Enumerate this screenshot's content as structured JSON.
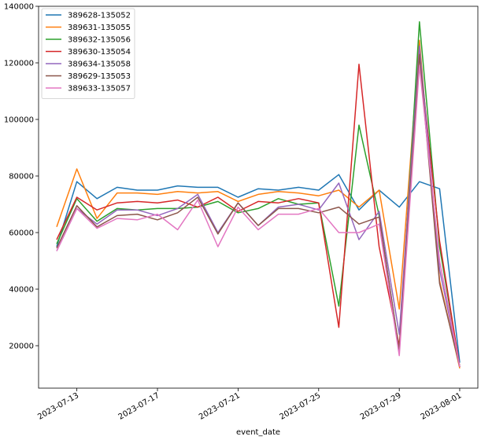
{
  "chart_data": {
    "type": "line",
    "title": "",
    "xlabel": "event_date",
    "ylabel": "",
    "x": [
      "2023-07-12",
      "2023-07-13",
      "2023-07-14",
      "2023-07-15",
      "2023-07-16",
      "2023-07-17",
      "2023-07-18",
      "2023-07-19",
      "2023-07-20",
      "2023-07-21",
      "2023-07-22",
      "2023-07-23",
      "2023-07-24",
      "2023-07-25",
      "2023-07-26",
      "2023-07-27",
      "2023-07-28",
      "2023-07-29",
      "2023-07-30",
      "2023-07-31",
      "2023-08-01"
    ],
    "xticks": [
      "2023-07-13",
      "2023-07-17",
      "2023-07-21",
      "2023-07-25",
      "2023-07-29",
      "2023-08-01"
    ],
    "yticks": [
      20000,
      40000,
      60000,
      80000,
      100000,
      120000,
      140000
    ],
    "ylim": [
      5000,
      140000
    ],
    "grid": false,
    "legend_position": "top-left",
    "series": [
      {
        "name": "389628-135052",
        "color": "#1f77b4",
        "values": [
          55000,
          78000,
          72000,
          76000,
          75000,
          75000,
          76500,
          76000,
          76000,
          72500,
          75500,
          75000,
          76000,
          75000,
          80500,
          68000,
          75000,
          69000,
          78000,
          75500,
          14000
        ]
      },
      {
        "name": "389631-135055",
        "color": "#ff7f0e",
        "values": [
          62000,
          82500,
          65000,
          74000,
          74000,
          73500,
          74500,
          74000,
          74500,
          71000,
          73500,
          74500,
          74000,
          73000,
          75000,
          69000,
          75000,
          33000,
          128000,
          43000,
          12000
        ]
      },
      {
        "name": "389632-135056",
        "color": "#2ca02c",
        "values": [
          56000,
          72000,
          64000,
          68500,
          68000,
          68500,
          68500,
          69000,
          71000,
          67000,
          68500,
          72000,
          70000,
          70500,
          34000,
          98000,
          66000,
          18000,
          134500,
          55000,
          12500
        ]
      },
      {
        "name": "389630-135054",
        "color": "#d62728",
        "values": [
          57500,
          72500,
          68000,
          70500,
          71000,
          70500,
          71500,
          69000,
          72500,
          67500,
          71000,
          70500,
          72000,
          70500,
          26500,
          119500,
          55000,
          20000,
          123000,
          57000,
          12500
        ]
      },
      {
        "name": "389634-135058",
        "color": "#9467bd",
        "values": [
          53500,
          68500,
          63000,
          68000,
          68000,
          66000,
          68500,
          73500,
          60000,
          70500,
          62500,
          69000,
          70000,
          68000,
          77500,
          57500,
          67500,
          24000,
          126000,
          47000,
          12500
        ]
      },
      {
        "name": "389629-135053",
        "color": "#8c564b",
        "values": [
          54500,
          69500,
          62000,
          66000,
          66500,
          64500,
          67000,
          72500,
          59500,
          70500,
          62500,
          68500,
          68500,
          67000,
          69000,
          63000,
          65500,
          18500,
          123000,
          42000,
          12500
        ]
      },
      {
        "name": "389633-135057",
        "color": "#e377c2",
        "values": [
          53500,
          68500,
          61500,
          65000,
          64500,
          66500,
          61000,
          71500,
          55000,
          69000,
          61000,
          66500,
          66500,
          68500,
          60000,
          60000,
          63000,
          16500,
          119000,
          50000,
          12500
        ]
      }
    ]
  }
}
